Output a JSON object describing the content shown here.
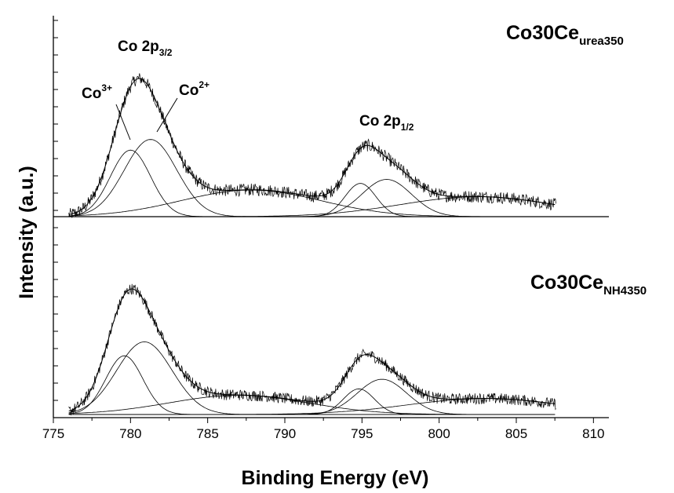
{
  "chart_data": {
    "type": "line",
    "xlabel": "Binding Energy  (eV)",
    "ylabel": "Intensity (a.u.)",
    "xlim": [
      775,
      811
    ],
    "xticks": [
      "775",
      "780",
      "785",
      "790",
      "795",
      "800",
      "805",
      "810"
    ],
    "y_tick_labels": false,
    "grid": false,
    "panels": [
      {
        "name": "urea350",
        "label": {
          "base": "Co30Ce",
          "sub": "urea350"
        },
        "baseline": 0,
        "peak_max": 1.0,
        "peaks": [
          {
            "center": 780.0,
            "height": 0.5,
            "width": 1.3
          },
          {
            "center": 781.3,
            "height": 0.58,
            "width": 1.7
          },
          {
            "center": 787.8,
            "height": 0.2,
            "width": 4.5
          },
          {
            "center": 794.9,
            "height": 0.25,
            "width": 1.0
          },
          {
            "center": 796.6,
            "height": 0.28,
            "width": 1.6
          },
          {
            "center": 802.5,
            "height": 0.15,
            "width": 5.0
          }
        ]
      },
      {
        "name": "NH4350",
        "label": {
          "base": "Co30Ce",
          "sub": "NH4350"
        },
        "baseline": 0,
        "peak_max": 1.0,
        "peaks": [
          {
            "center": 779.6,
            "height": 0.55,
            "width": 1.2
          },
          {
            "center": 780.9,
            "height": 0.68,
            "width": 1.8
          },
          {
            "center": 787.0,
            "height": 0.18,
            "width": 4.5
          },
          {
            "center": 794.8,
            "height": 0.24,
            "width": 1.0
          },
          {
            "center": 796.3,
            "height": 0.33,
            "width": 1.6
          },
          {
            "center": 803.0,
            "height": 0.15,
            "width": 5.0
          }
        ]
      }
    ],
    "annotations": [
      {
        "text": "Co 2p",
        "sub": "3/2"
      },
      {
        "text": "Co",
        "sup": "3+"
      },
      {
        "text": "Co",
        "sup": "2+"
      },
      {
        "text": "Co 2p",
        "sub": "1/2"
      }
    ]
  }
}
